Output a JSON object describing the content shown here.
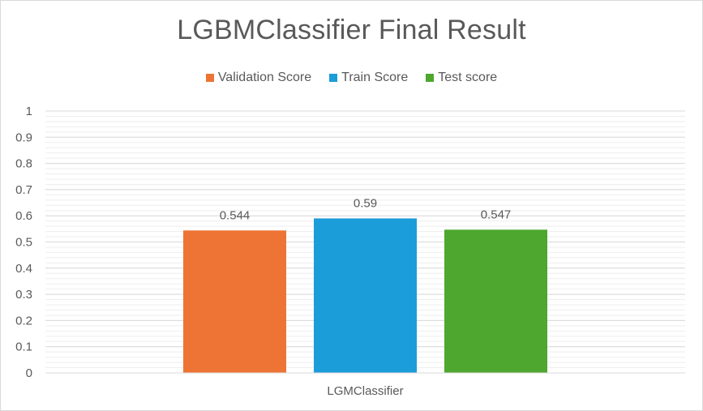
{
  "chart_data": {
    "type": "bar",
    "title": "LGBMClassifier Final Result",
    "categories": [
      "LGMClassifier"
    ],
    "series": [
      {
        "name": "Validation Score",
        "values": [
          0.544
        ],
        "color": "#ED7434",
        "label": "0.544"
      },
      {
        "name": "Train Score",
        "values": [
          0.59
        ],
        "color": "#1A9DD9",
        "label": "0.59"
      },
      {
        "name": "Test score",
        "values": [
          0.547
        ],
        "color": "#4EA72E",
        "label": "0.547"
      }
    ],
    "ylim": [
      0,
      1
    ],
    "yticks": [
      "0",
      "0.1",
      "0.2",
      "0.3",
      "0.4",
      "0.5",
      "0.6",
      "0.7",
      "0.8",
      "0.9",
      "1"
    ],
    "xlabel": "",
    "ylabel": "",
    "grid": true,
    "legend_position": "top"
  }
}
